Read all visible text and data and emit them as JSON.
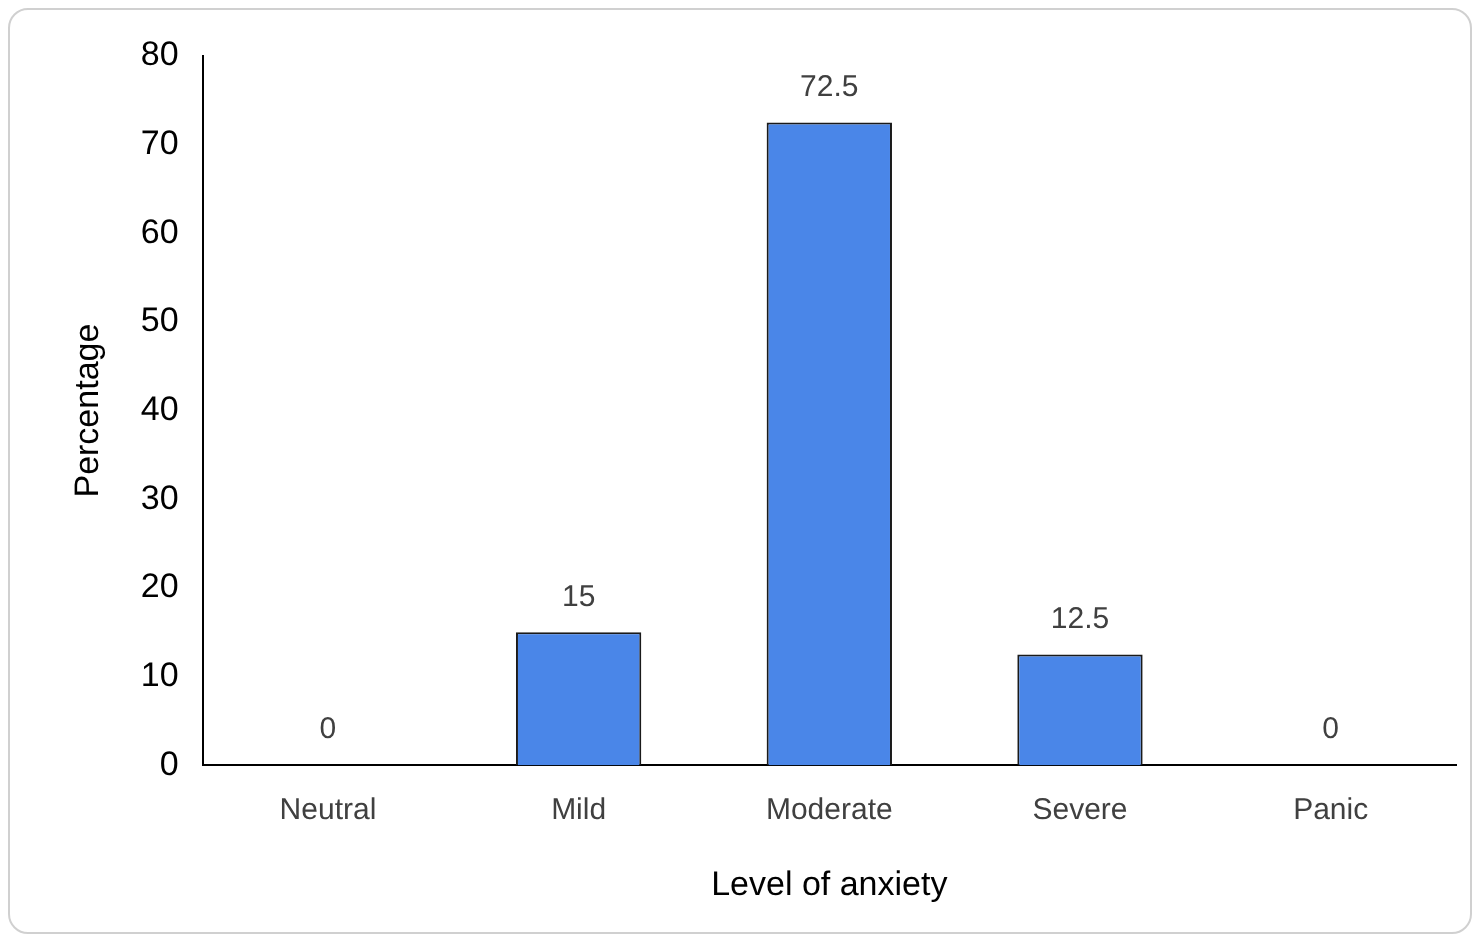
{
  "chart_data": {
    "type": "bar",
    "xlabel": "Level of anxiety",
    "ylabel": "Percentage",
    "categories": [
      "Neutral",
      "Mild",
      "Moderate",
      "Severe",
      "Panic"
    ],
    "values": [
      0,
      15,
      72.5,
      12.5,
      0
    ],
    "color": "#4a86e8",
    "ylim": [
      0,
      80
    ],
    "yticks": [
      0,
      10,
      20,
      30,
      40,
      50,
      60,
      70,
      80
    ],
    "grid": false,
    "data_labels": true,
    "legend": false
  }
}
